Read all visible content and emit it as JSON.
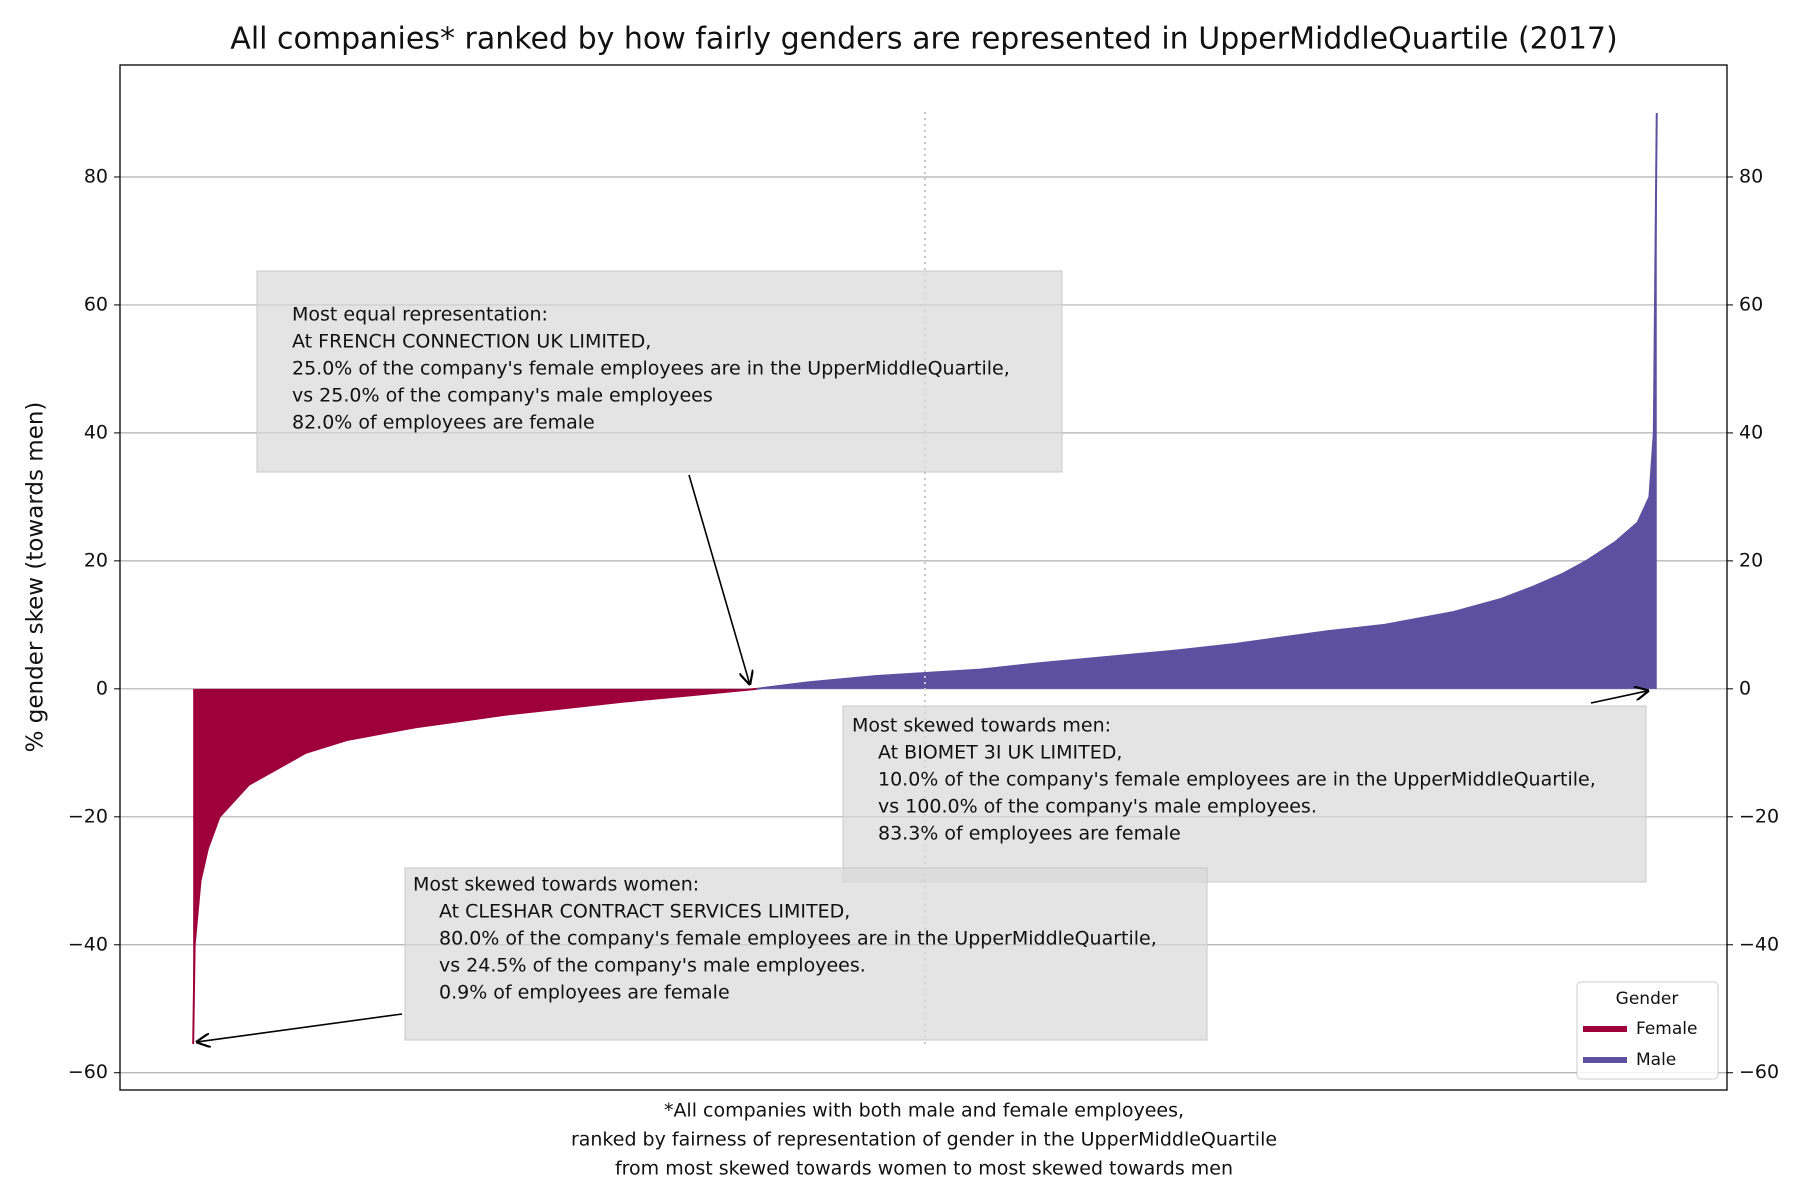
{
  "chart_data": {
    "type": "area",
    "title": "All companies* ranked by how fairly genders are represented in UpperMiddleQuartile (2017)",
    "ylabel": "% gender skew (towards men)",
    "footnote": [
      "*All companies with both male and female employees,",
      "ranked by fairness of representation of gender in the UpperMiddleQuartile",
      "from most skewed towards women to most skewed towards men"
    ],
    "xlim": [
      -5,
      104.8
    ],
    "ylim": [
      -62.7,
      97.5
    ],
    "yticks": [
      {
        "value": -60,
        "label": "−60"
      },
      {
        "value": -40,
        "label": "−40"
      },
      {
        "value": -20,
        "label": "−20"
      },
      0,
      20,
      40,
      60,
      80
    ],
    "y2lim": [
      -62.7,
      97.5
    ],
    "y2ticks": [
      {
        "value": -60,
        "label": "−60"
      },
      {
        "value": -40,
        "label": "−40"
      },
      {
        "value": -20,
        "label": "−20"
      },
      0,
      20,
      40,
      60,
      80
    ],
    "grid": true,
    "vline": {
      "x": 50
    },
    "legend": {
      "title": "Gender",
      "loc": "lower right"
    },
    "series": [
      {
        "name": "Female",
        "color": "#9e003a",
        "x": [
          0,
          0.1,
          0.5,
          1,
          1.8,
          3.8,
          7.7,
          10.5,
          15.2,
          18.4,
          21.5,
          25.5,
          29.4,
          34,
          38.5
        ],
        "values": [
          -55.5,
          -40,
          -30,
          -25,
          -20,
          -15,
          -10,
          -8,
          -6,
          -5,
          -4,
          -3,
          -2,
          -1,
          0
        ]
      },
      {
        "name": "Male",
        "color": "#5e50a1",
        "x": [
          38.5,
          42,
          46.7,
          53.8,
          57.8,
          62.5,
          67.2,
          71.2,
          74.3,
          77.5,
          81.4,
          86.1,
          89.3,
          91.6,
          93.6,
          95.2,
          97.2,
          98.7,
          99.5,
          99.8,
          100
        ],
        "values": [
          0,
          1,
          2,
          3,
          4,
          5,
          6,
          7,
          8,
          9,
          10,
          12,
          14,
          16,
          18,
          20,
          23,
          26,
          30,
          40,
          90
        ]
      }
    ],
    "annotations": [
      {
        "lines": [
          "Most equal representation:",
          "At FRENCH CONNECTION UK LIMITED,",
          "25.0% of the company's female employees are in the UpperMiddleQuartile,",
          "vs 25.0% of the company's male employees",
          "82.0% of employees are female"
        ]
      },
      {
        "lines": [
          "Most skewed towards men:",
          "At BIOMET 3I UK LIMITED,",
          "10.0% of the company's female employees are in the UpperMiddleQuartile,",
          "vs 100.0% of the company's male employees.",
          "83.3% of employees are female"
        ]
      },
      {
        "lines": [
          "Most skewed towards women:",
          "At CLESHAR CONTRACT SERVICES LIMITED,",
          "80.0% of the company's female employees are in the UpperMiddleQuartile,",
          "vs  24.5% of the company's male employees.",
          "0.9% of employees are female"
        ]
      }
    ]
  }
}
